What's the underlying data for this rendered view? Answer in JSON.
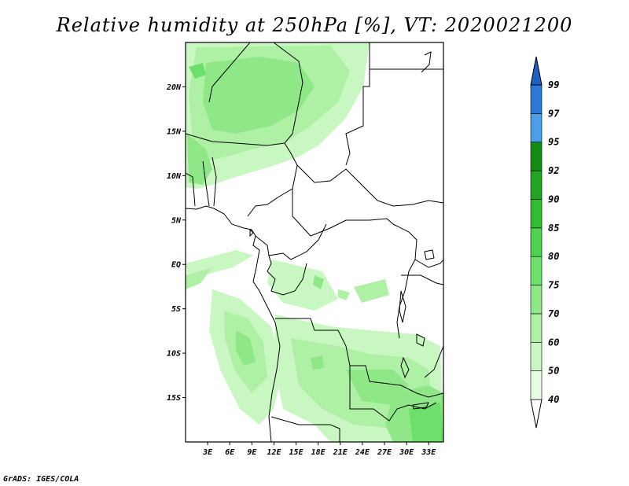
{
  "title": "Relative humidity at 250hPa [%], VT: 2020021200",
  "credit": "GrADS: IGES/COLA",
  "map": {
    "lon_range": [
      0,
      35
    ],
    "lat_range": [
      -20,
      25
    ],
    "lat_ticks": [
      {
        "value": 20,
        "label": "20N"
      },
      {
        "value": 15,
        "label": "15N"
      },
      {
        "value": 10,
        "label": "10N"
      },
      {
        "value": 5,
        "label": "5N"
      },
      {
        "value": 0,
        "label": "EQ"
      },
      {
        "value": -5,
        "label": "5S"
      },
      {
        "value": -10,
        "label": "10S"
      },
      {
        "value": -15,
        "label": "15S"
      }
    ],
    "lon_ticks": [
      {
        "value": 3,
        "label": "3E"
      },
      {
        "value": 6,
        "label": "6E"
      },
      {
        "value": 9,
        "label": "9E"
      },
      {
        "value": 12,
        "label": "12E"
      },
      {
        "value": 15,
        "label": "15E"
      },
      {
        "value": 18,
        "label": "18E"
      },
      {
        "value": 21,
        "label": "21E"
      },
      {
        "value": 24,
        "label": "24E"
      },
      {
        "value": 27,
        "label": "27E"
      },
      {
        "value": 30,
        "label": "30E"
      },
      {
        "value": 33,
        "label": "33E"
      }
    ]
  },
  "colorbar": {
    "levels": [
      {
        "label": "40",
        "color": "#e6fde3"
      },
      {
        "label": "50",
        "color": "#c9f7c1"
      },
      {
        "label": "60",
        "color": "#aef0a4"
      },
      {
        "label": "70",
        "color": "#8ee887"
      },
      {
        "label": "75",
        "color": "#6de06b"
      },
      {
        "label": "80",
        "color": "#4fd24f"
      },
      {
        "label": "85",
        "color": "#33bd33"
      },
      {
        "label": "90",
        "color": "#22a322"
      },
      {
        "label": "92",
        "color": "#138c13"
      },
      {
        "label": "95",
        "color": "#4a9fe6"
      },
      {
        "label": "97",
        "color": "#2e79d8"
      },
      {
        "label": "99",
        "color": "#1f5fc4"
      }
    ],
    "bottom_color": "#ffffff",
    "top_color": "#1f5fc4"
  }
}
